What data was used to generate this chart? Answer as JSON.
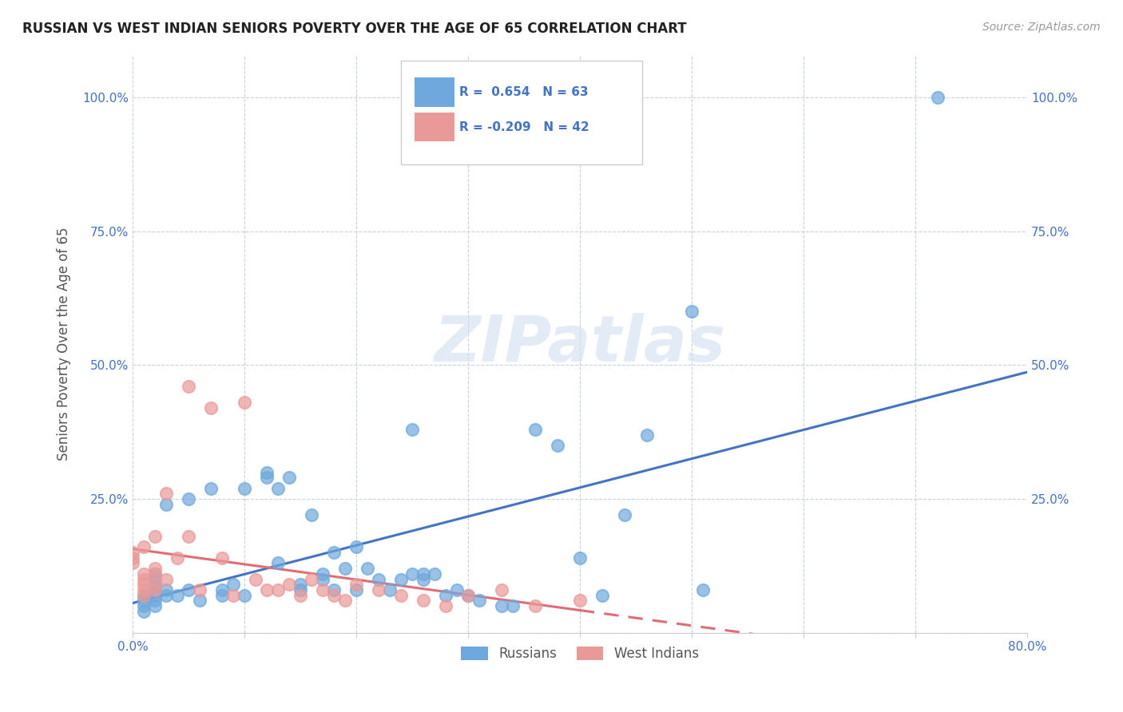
{
  "title": "RUSSIAN VS WEST INDIAN SENIORS POVERTY OVER THE AGE OF 65 CORRELATION CHART",
  "source": "Source: ZipAtlas.com",
  "ylabel": "Seniors Poverty Over the Age of 65",
  "xlim": [
    0.0,
    0.8
  ],
  "ylim": [
    0.0,
    1.08
  ],
  "russian_color": "#6fa8dc",
  "russian_edge": "#6fa8dc",
  "west_indian_color": "#ea9999",
  "west_indian_edge": "#ea9999",
  "regression_russian_color": "#4472c4",
  "regression_wi_color": "#e06c75",
  "russian_R": 0.654,
  "russian_N": 63,
  "west_indian_R": -0.209,
  "west_indian_N": 42,
  "watermark": "ZIPatlas",
  "legend_russians": "Russians",
  "legend_west_indians": "West Indians",
  "russian_x": [
    0.01,
    0.01,
    0.01,
    0.01,
    0.02,
    0.02,
    0.02,
    0.02,
    0.02,
    0.02,
    0.02,
    0.03,
    0.03,
    0.03,
    0.04,
    0.05,
    0.05,
    0.06,
    0.07,
    0.08,
    0.08,
    0.09,
    0.1,
    0.1,
    0.12,
    0.12,
    0.13,
    0.13,
    0.14,
    0.15,
    0.15,
    0.16,
    0.17,
    0.17,
    0.18,
    0.18,
    0.19,
    0.2,
    0.2,
    0.21,
    0.22,
    0.23,
    0.24,
    0.25,
    0.25,
    0.26,
    0.26,
    0.27,
    0.28,
    0.29,
    0.3,
    0.31,
    0.33,
    0.34,
    0.36,
    0.38,
    0.4,
    0.42,
    0.44,
    0.46,
    0.5,
    0.51,
    0.72
  ],
  "russian_y": [
    0.04,
    0.05,
    0.06,
    0.07,
    0.05,
    0.06,
    0.07,
    0.08,
    0.09,
    0.1,
    0.11,
    0.07,
    0.08,
    0.24,
    0.07,
    0.08,
    0.25,
    0.06,
    0.27,
    0.07,
    0.08,
    0.09,
    0.07,
    0.27,
    0.29,
    0.3,
    0.13,
    0.27,
    0.29,
    0.08,
    0.09,
    0.22,
    0.1,
    0.11,
    0.08,
    0.15,
    0.12,
    0.08,
    0.16,
    0.12,
    0.1,
    0.08,
    0.1,
    0.11,
    0.38,
    0.1,
    0.11,
    0.11,
    0.07,
    0.08,
    0.07,
    0.06,
    0.05,
    0.05,
    0.38,
    0.35,
    0.14,
    0.07,
    0.22,
    0.37,
    0.6,
    0.08,
    1.0
  ],
  "west_indian_x": [
    0.0,
    0.0,
    0.0,
    0.01,
    0.01,
    0.01,
    0.01,
    0.01,
    0.01,
    0.02,
    0.02,
    0.02,
    0.02,
    0.02,
    0.03,
    0.03,
    0.04,
    0.05,
    0.05,
    0.06,
    0.07,
    0.08,
    0.09,
    0.1,
    0.11,
    0.12,
    0.13,
    0.14,
    0.15,
    0.16,
    0.17,
    0.18,
    0.19,
    0.2,
    0.22,
    0.24,
    0.26,
    0.28,
    0.3,
    0.33,
    0.36,
    0.4
  ],
  "west_indian_y": [
    0.13,
    0.14,
    0.15,
    0.07,
    0.08,
    0.09,
    0.1,
    0.11,
    0.16,
    0.08,
    0.09,
    0.11,
    0.12,
    0.18,
    0.1,
    0.26,
    0.14,
    0.18,
    0.46,
    0.08,
    0.42,
    0.14,
    0.07,
    0.43,
    0.1,
    0.08,
    0.08,
    0.09,
    0.07,
    0.1,
    0.08,
    0.07,
    0.06,
    0.09,
    0.08,
    0.07,
    0.06,
    0.05,
    0.07,
    0.08,
    0.05,
    0.06
  ]
}
